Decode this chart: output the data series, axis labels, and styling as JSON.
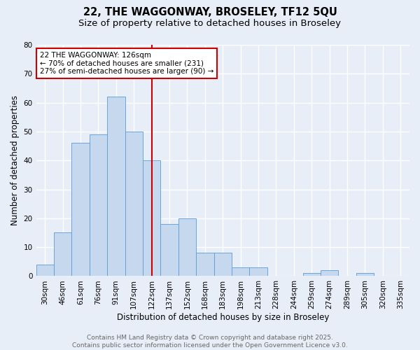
{
  "title_line1": "22, THE WAGGONWAY, BROSELEY, TF12 5QU",
  "title_line2": "Size of property relative to detached houses in Broseley",
  "xlabel": "Distribution of detached houses by size in Broseley",
  "ylabel": "Number of detached properties",
  "categories": [
    "30sqm",
    "46sqm",
    "61sqm",
    "76sqm",
    "91sqm",
    "107sqm",
    "122sqm",
    "137sqm",
    "152sqm",
    "168sqm",
    "183sqm",
    "198sqm",
    "213sqm",
    "228sqm",
    "244sqm",
    "259sqm",
    "274sqm",
    "289sqm",
    "305sqm",
    "320sqm",
    "335sqm"
  ],
  "values": [
    4,
    15,
    46,
    49,
    62,
    50,
    40,
    18,
    20,
    8,
    8,
    3,
    3,
    0,
    0,
    1,
    2,
    0,
    1,
    0,
    0
  ],
  "bar_color": "#c5d8ed",
  "bar_edge_color": "#5b9bd5",
  "bar_width": 1.0,
  "ylim": [
    0,
    80
  ],
  "yticks": [
    0,
    10,
    20,
    30,
    40,
    50,
    60,
    70,
    80
  ],
  "vline_x_index": 6,
  "vline_color": "#cc0000",
  "annotation_line1": "22 THE WAGGONWAY: 126sqm",
  "annotation_line2": "← 70% of detached houses are smaller (231)",
  "annotation_line3": "27% of semi-detached houses are larger (90) →",
  "annotation_box_color": "#cc0000",
  "background_color": "#e8eef8",
  "plot_background": "#e8eef8",
  "grid_color": "#ffffff",
  "footer_text": "Contains HM Land Registry data © Crown copyright and database right 2025.\nContains public sector information licensed under the Open Government Licence v3.0.",
  "title_fontsize": 10.5,
  "subtitle_fontsize": 9.5,
  "axis_label_fontsize": 8.5,
  "tick_fontsize": 7.5,
  "annotation_fontsize": 7.5,
  "footer_fontsize": 6.5
}
